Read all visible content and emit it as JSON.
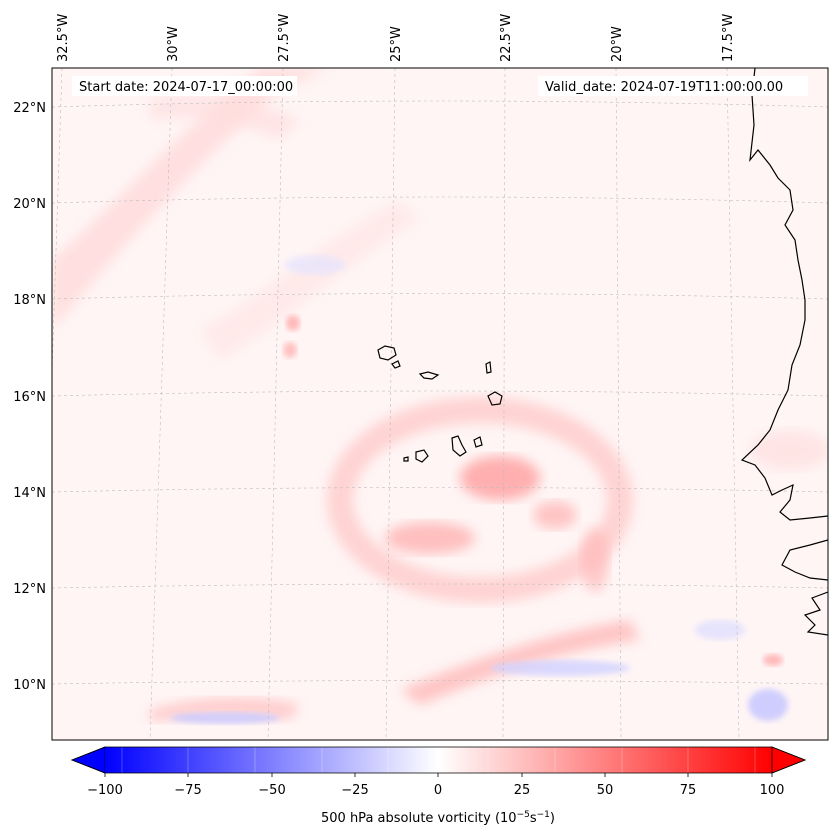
{
  "header": {
    "start_date": "Start date: 2024-07-17_00:00:00",
    "valid_date": "Valid_date: 2024-07-19T11:00:00.00"
  },
  "axes": {
    "lon_labels": [
      "32.5°W",
      "30°W",
      "27.5°W",
      "25°W",
      "22.5°W",
      "20°W",
      "17.5°W"
    ],
    "lat_labels": [
      "22°N",
      "20°N",
      "18°N",
      "16°N",
      "14°N",
      "12°N",
      "10°N"
    ]
  },
  "colorbar": {
    "ticks": [
      "−100",
      "−75",
      "−50",
      "−25",
      "0",
      "25",
      "50",
      "75",
      "100"
    ],
    "min": -100,
    "max": 100,
    "label_prefix": "500 hPa absolute vorticity (10",
    "label_exp1": "−5",
    "label_mid": "s",
    "label_exp2": "−1",
    "label_suffix": ")"
  },
  "colors": {
    "negative": "#0000ff",
    "positive": "#ff0000",
    "coast": "#000000",
    "grid": "#b0b0b0"
  }
}
